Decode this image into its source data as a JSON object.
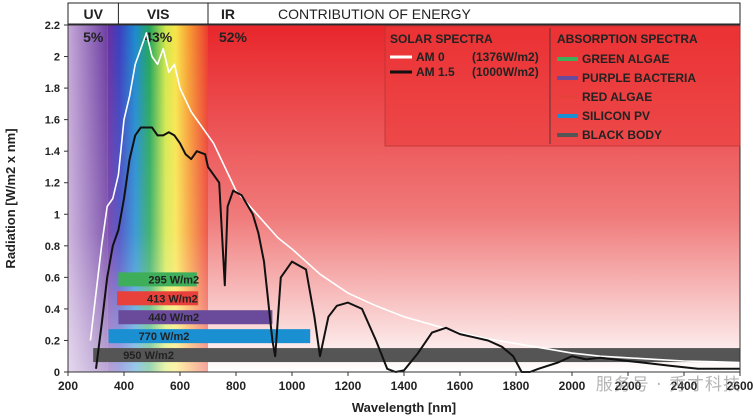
{
  "watermark": "服务号 · 秀才科技",
  "chart_data": {
    "type": "line",
    "title": "CONTRIBUTION OF ENERGY",
    "xlabel": "Wavelength [nm]",
    "ylabel": "Radiation [W/m2 x nm]",
    "xlim": [
      200,
      2600
    ],
    "ylim": [
      0,
      2.2
    ],
    "xticks": [
      "200",
      "400",
      "600",
      "800",
      "1000",
      "1200",
      "1400",
      "1600",
      "1800",
      "2000",
      "2200",
      "2400",
      "2600"
    ],
    "yticks": [
      "0",
      "0.2",
      "0.4",
      "0.6",
      "0.8",
      "1",
      "1.2",
      "1.4",
      "1.6",
      "1.8",
      "2",
      "2.2"
    ],
    "regions": [
      {
        "name": "UV",
        "percent": "5%",
        "x_from": 200,
        "x_to": 380
      },
      {
        "name": "VIS",
        "percent": "43%",
        "x_from": 380,
        "x_to": 700
      },
      {
        "name": "IR",
        "percent": "52%",
        "x_from": 700,
        "x_to": 2600
      }
    ],
    "solar_spectra_title": "SOLAR SPECTRA",
    "series": [
      {
        "name": "AM 0",
        "label_extra": "(1376W/m2)",
        "color": "#ffffff",
        "x": [
          280,
          300,
          320,
          340,
          360,
          380,
          400,
          420,
          440,
          460,
          480,
          500,
          520,
          540,
          560,
          580,
          600,
          640,
          680,
          720,
          760,
          800,
          850,
          900,
          950,
          1000,
          1100,
          1200,
          1300,
          1400,
          1500,
          1600,
          1700,
          1800,
          1900,
          2000,
          2100,
          2200,
          2300,
          2400,
          2500,
          2600
        ],
        "y": [
          0.2,
          0.5,
          0.8,
          1.05,
          1.1,
          1.25,
          1.6,
          1.75,
          1.95,
          2.05,
          2.15,
          2.0,
          1.95,
          2.05,
          1.9,
          1.95,
          1.8,
          1.65,
          1.55,
          1.45,
          1.3,
          1.15,
          1.05,
          0.95,
          0.85,
          0.78,
          0.62,
          0.5,
          0.42,
          0.35,
          0.3,
          0.25,
          0.21,
          0.18,
          0.15,
          0.12,
          0.1,
          0.09,
          0.08,
          0.07,
          0.065,
          0.06
        ]
      },
      {
        "name": "AM 1.5",
        "label_extra": "(1000W/m2)",
        "color": "#111111",
        "x": [
          300,
          320,
          340,
          360,
          380,
          400,
          420,
          440,
          460,
          480,
          500,
          520,
          540,
          560,
          580,
          600,
          620,
          640,
          660,
          690,
          700,
          720,
          740,
          760,
          770,
          790,
          820,
          860,
          880,
          900,
          930,
          940,
          960,
          1000,
          1050,
          1080,
          1100,
          1130,
          1160,
          1200,
          1250,
          1300,
          1340,
          1370,
          1400,
          1450,
          1500,
          1550,
          1600,
          1650,
          1700,
          1750,
          1790,
          1820,
          1850,
          1880,
          1950,
          2000,
          2050,
          2100,
          2150,
          2200,
          2250,
          2300,
          2350,
          2400,
          2450,
          2500,
          2550,
          2600
        ],
        "y": [
          0.02,
          0.3,
          0.6,
          0.8,
          0.9,
          1.1,
          1.35,
          1.5,
          1.55,
          1.55,
          1.55,
          1.5,
          1.5,
          1.52,
          1.5,
          1.45,
          1.38,
          1.35,
          1.4,
          1.38,
          1.3,
          1.25,
          1.2,
          0.55,
          1.05,
          1.15,
          1.12,
          1.0,
          0.88,
          0.7,
          0.2,
          0.1,
          0.6,
          0.7,
          0.65,
          0.35,
          0.1,
          0.35,
          0.42,
          0.44,
          0.4,
          0.2,
          0.02,
          0.0,
          0.01,
          0.12,
          0.25,
          0.28,
          0.24,
          0.22,
          0.2,
          0.16,
          0.1,
          0.0,
          0.0,
          0.02,
          0.06,
          0.1,
          0.08,
          0.09,
          0.08,
          0.07,
          0.06,
          0.05,
          0.04,
          0.03,
          0.02,
          0.02,
          0.02,
          0.02
        ]
      }
    ],
    "absorption_spectra": {
      "title": "ABSORPTION SPECTRA",
      "items": [
        {
          "name": "GREEN ALGAE",
          "color": "#3fae5a",
          "power": "295 W/m2",
          "x_from": 380,
          "x_to": 660
        },
        {
          "name": "PURPLE BACTERIA",
          "color": "#6a4a9a",
          "power": "440 W/m2",
          "x_from": 380,
          "x_to": 930
        },
        {
          "name": "RED ALGAE",
          "color": "#e8403a",
          "power": "413 W/m2",
          "x_from": 375,
          "x_to": 665
        },
        {
          "name": "SILICON PV",
          "color": "#1a8fd1",
          "power": "770 W/m2",
          "x_from": 345,
          "x_to": 1065
        },
        {
          "name": "BLACK BODY",
          "color": "#555555",
          "power": "950 W/m2",
          "x_from": 290,
          "x_to": 2600
        }
      ]
    },
    "band_order": [
      "GREEN ALGAE",
      "RED ALGAE",
      "PURPLE BACTERIA",
      "SILICON PV",
      "BLACK BODY"
    ],
    "band_levels": [
      0.6,
      0.48,
      0.36,
      0.24,
      0.12
    ]
  }
}
